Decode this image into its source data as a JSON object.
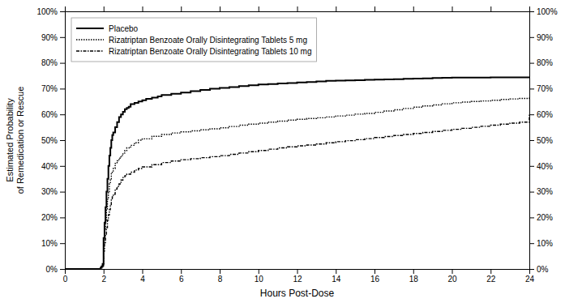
{
  "chart_data": {
    "type": "step",
    "xlabel": "Hours Post-Dose",
    "ylabel": "Estimated Probability\nof Remedication or Rescue",
    "xlim": [
      0,
      24
    ],
    "ylim": [
      0,
      1.0
    ],
    "xticks": [
      0,
      2,
      4,
      6,
      8,
      10,
      12,
      14,
      16,
      18,
      20,
      22,
      24
    ],
    "yticks": [
      {
        "value": 0.0,
        "label": "0%"
      },
      {
        "value": 0.1,
        "label": "10%"
      },
      {
        "value": 0.2,
        "label": "20%"
      },
      {
        "value": 0.3,
        "label": "30%"
      },
      {
        "value": 0.4,
        "label": "40%"
      },
      {
        "value": 0.5,
        "label": "50%"
      },
      {
        "value": 0.6,
        "label": "60%"
      },
      {
        "value": 0.7,
        "label": "70%"
      },
      {
        "value": 0.8,
        "label": "80%"
      },
      {
        "value": 0.9,
        "label": "90%"
      },
      {
        "value": 1.0,
        "label": "100%"
      }
    ],
    "y2lim": [
      0,
      1.0
    ],
    "y2ticks": [
      {
        "value": 0.0,
        "label": "0%"
      },
      {
        "value": 0.1,
        "label": "10%"
      },
      {
        "value": 0.2,
        "label": "20%"
      },
      {
        "value": 0.3,
        "label": "30%"
      },
      {
        "value": 0.4,
        "label": "40%"
      },
      {
        "value": 0.5,
        "label": "50%"
      },
      {
        "value": 0.6,
        "label": "60%"
      },
      {
        "value": 0.7,
        "label": "70%"
      },
      {
        "value": 0.8,
        "label": "80%"
      },
      {
        "value": 0.9,
        "label": "90%"
      },
      {
        "value": 1.0,
        "label": "100%"
      }
    ],
    "grid": false,
    "legend": "upper left",
    "series": [
      {
        "name": "Placebo",
        "color": "#000000",
        "line_style": "solid",
        "x": [
          0,
          1.85,
          1.9,
          1.95,
          2.0,
          2.05,
          2.1,
          2.15,
          2.2,
          2.25,
          2.3,
          2.35,
          2.4,
          2.45,
          2.5,
          2.6,
          2.7,
          2.8,
          2.9,
          3.0,
          3.1,
          3.2,
          3.3,
          3.4,
          3.6,
          3.8,
          4.0,
          4.2,
          4.5,
          4.8,
          5.0,
          5.5,
          6.0,
          6.5,
          7.0,
          7.5,
          8.0,
          8.5,
          9.0,
          9.5,
          10.0,
          10.5,
          11.0,
          11.5,
          12.0,
          12.5,
          13.0,
          13.5,
          14.0,
          14.5,
          15.0,
          15.5,
          16.0,
          16.5,
          17.0,
          17.5,
          18.0,
          18.5,
          19.0,
          19.5,
          20.0,
          20.5,
          21.0,
          21.5,
          22.0,
          22.5,
          23.0,
          23.5,
          24.0
        ],
        "values": [
          0.0,
          0.005,
          0.01,
          0.02,
          0.12,
          0.18,
          0.24,
          0.3,
          0.35,
          0.4,
          0.44,
          0.47,
          0.5,
          0.52,
          0.53,
          0.55,
          0.57,
          0.59,
          0.6,
          0.61,
          0.62,
          0.625,
          0.63,
          0.64,
          0.645,
          0.65,
          0.655,
          0.66,
          0.665,
          0.67,
          0.675,
          0.68,
          0.685,
          0.69,
          0.695,
          0.7,
          0.703,
          0.706,
          0.71,
          0.713,
          0.716,
          0.718,
          0.72,
          0.722,
          0.724,
          0.726,
          0.728,
          0.73,
          0.731,
          0.732,
          0.733,
          0.734,
          0.735,
          0.736,
          0.737,
          0.738,
          0.739,
          0.74,
          0.741,
          0.742,
          0.743,
          0.743,
          0.743,
          0.743,
          0.744,
          0.744,
          0.744,
          0.744,
          0.744
        ]
      },
      {
        "name": "Rizatriptan Benzoate Orally Disintegrating Tablets 5 mg",
        "color": "#000000",
        "line_style": "dotted",
        "x": [
          0,
          1.85,
          1.9,
          1.95,
          2.0,
          2.05,
          2.1,
          2.15,
          2.2,
          2.25,
          2.3,
          2.35,
          2.4,
          2.45,
          2.5,
          2.6,
          2.7,
          2.8,
          2.9,
          3.0,
          3.1,
          3.2,
          3.4,
          3.6,
          3.8,
          4.0,
          4.5,
          5.0,
          5.5,
          6.0,
          6.5,
          7.0,
          7.5,
          8.0,
          8.5,
          9.0,
          9.5,
          10.0,
          10.5,
          11.0,
          11.5,
          12.0,
          12.5,
          13.0,
          13.5,
          14.0,
          14.5,
          15.0,
          15.5,
          16.0,
          16.5,
          17.0,
          17.5,
          18.0,
          18.5,
          19.0,
          19.5,
          20.0,
          20.5,
          21.0,
          21.5,
          22.0,
          22.5,
          23.0,
          23.5,
          24.0
        ],
        "values": [
          0.0,
          0.005,
          0.01,
          0.015,
          0.1,
          0.15,
          0.19,
          0.23,
          0.27,
          0.3,
          0.33,
          0.35,
          0.37,
          0.38,
          0.39,
          0.41,
          0.42,
          0.43,
          0.44,
          0.45,
          0.46,
          0.47,
          0.48,
          0.49,
          0.5,
          0.505,
          0.515,
          0.522,
          0.528,
          0.532,
          0.536,
          0.54,
          0.544,
          0.548,
          0.553,
          0.558,
          0.562,
          0.566,
          0.57,
          0.574,
          0.578,
          0.581,
          0.584,
          0.587,
          0.59,
          0.594,
          0.597,
          0.601,
          0.604,
          0.608,
          0.613,
          0.618,
          0.623,
          0.628,
          0.633,
          0.637,
          0.641,
          0.645,
          0.648,
          0.65,
          0.652,
          0.655,
          0.658,
          0.66,
          0.662,
          0.665
        ]
      },
      {
        "name": "Rizatriptan Benzoate Orally Disintegrating Tablets 10 mg",
        "color": "#000000",
        "line_style": "dashdot",
        "x": [
          0,
          1.85,
          1.9,
          1.95,
          2.0,
          2.05,
          2.1,
          2.15,
          2.2,
          2.25,
          2.3,
          2.35,
          2.4,
          2.45,
          2.5,
          2.6,
          2.7,
          2.8,
          2.9,
          3.0,
          3.1,
          3.2,
          3.4,
          3.6,
          3.8,
          4.0,
          4.5,
          5.0,
          5.5,
          6.0,
          6.5,
          7.0,
          7.5,
          8.0,
          8.5,
          9.0,
          9.5,
          10.0,
          10.5,
          11.0,
          11.5,
          12.0,
          12.5,
          13.0,
          13.5,
          14.0,
          14.5,
          15.0,
          15.5,
          16.0,
          16.5,
          17.0,
          17.5,
          18.0,
          18.5,
          19.0,
          19.5,
          20.0,
          20.5,
          21.0,
          21.5,
          22.0,
          22.5,
          23.0,
          23.5,
          24.0
        ],
        "values": [
          0.0,
          0.005,
          0.008,
          0.012,
          0.07,
          0.1,
          0.13,
          0.16,
          0.19,
          0.21,
          0.23,
          0.25,
          0.27,
          0.28,
          0.29,
          0.31,
          0.32,
          0.33,
          0.345,
          0.355,
          0.362,
          0.368,
          0.376,
          0.384,
          0.39,
          0.396,
          0.405,
          0.413,
          0.419,
          0.424,
          0.428,
          0.432,
          0.436,
          0.44,
          0.445,
          0.45,
          0.455,
          0.46,
          0.465,
          0.47,
          0.474,
          0.478,
          0.481,
          0.485,
          0.49,
          0.494,
          0.498,
          0.502,
          0.506,
          0.51,
          0.514,
          0.518,
          0.522,
          0.526,
          0.53,
          0.534,
          0.538,
          0.542,
          0.546,
          0.55,
          0.554,
          0.558,
          0.562,
          0.566,
          0.57,
          0.6
        ]
      }
    ]
  }
}
